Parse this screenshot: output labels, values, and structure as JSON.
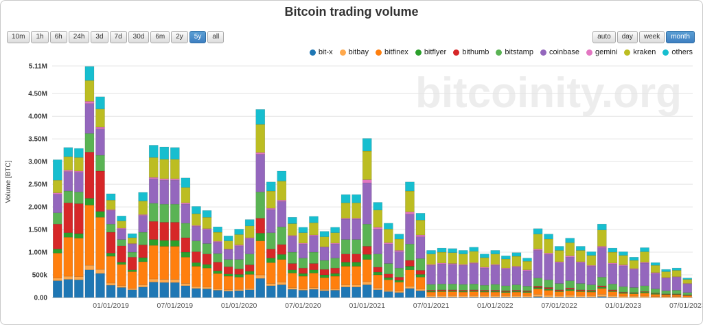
{
  "title": "Bitcoin trading volume",
  "watermark": "bitcoinity.org",
  "colors": {
    "accent": "#3e7fc1"
  },
  "toolbar": {
    "ranges": [
      {
        "label": "10m",
        "selected": false
      },
      {
        "label": "1h",
        "selected": false
      },
      {
        "label": "6h",
        "selected": false
      },
      {
        "label": "24h",
        "selected": false
      },
      {
        "label": "3d",
        "selected": false
      },
      {
        "label": "7d",
        "selected": false
      },
      {
        "label": "30d",
        "selected": false
      },
      {
        "label": "6m",
        "selected": false
      },
      {
        "label": "2y",
        "selected": false
      },
      {
        "label": "5y",
        "selected": true
      },
      {
        "label": "all",
        "selected": false
      }
    ],
    "granularity": [
      {
        "label": "auto",
        "selected": false
      },
      {
        "label": "day",
        "selected": false
      },
      {
        "label": "week",
        "selected": false
      },
      {
        "label": "month",
        "selected": true
      }
    ]
  },
  "chart_data": {
    "type": "bar",
    "stacked": true,
    "title": "Bitcoin trading volume",
    "ylabel": "Volume [BTC]",
    "unit": "million BTC",
    "ylim": [
      0,
      5.11
    ],
    "grid": "horizontal",
    "legend_position": "top-right",
    "y_ticks": [
      {
        "value": 0,
        "label": "0.00"
      },
      {
        "value": 0.5,
        "label": "500k"
      },
      {
        "value": 1.0,
        "label": "1.00M"
      },
      {
        "value": 1.5,
        "label": "1.50M"
      },
      {
        "value": 2.0,
        "label": "2.00M"
      },
      {
        "value": 2.5,
        "label": "2.50M"
      },
      {
        "value": 3.0,
        "label": "3.00M"
      },
      {
        "value": 3.5,
        "label": "3.50M"
      },
      {
        "value": 4.0,
        "label": "4.00M"
      },
      {
        "value": 4.5,
        "label": "4.50M"
      },
      {
        "value": 5.11,
        "label": "5.11M"
      }
    ],
    "x_months": [
      "2018-08",
      "2018-09",
      "2018-10",
      "2018-11",
      "2018-12",
      "2019-01",
      "2019-02",
      "2019-03",
      "2019-04",
      "2019-05",
      "2019-06",
      "2019-07",
      "2019-08",
      "2019-09",
      "2019-10",
      "2019-11",
      "2019-12",
      "2020-01",
      "2020-02",
      "2020-03",
      "2020-04",
      "2020-05",
      "2020-06",
      "2020-07",
      "2020-08",
      "2020-09",
      "2020-10",
      "2020-11",
      "2020-12",
      "2021-01",
      "2021-02",
      "2021-03",
      "2021-04",
      "2021-05",
      "2021-06",
      "2021-07",
      "2021-08",
      "2021-09",
      "2021-10",
      "2021-11",
      "2021-12",
      "2022-01",
      "2022-02",
      "2022-03",
      "2022-04",
      "2022-05",
      "2022-06",
      "2022-07",
      "2022-08",
      "2022-09",
      "2022-10",
      "2022-11",
      "2022-12",
      "2023-01",
      "2023-02",
      "2023-03",
      "2023-04",
      "2023-05",
      "2023-06",
      "2023-07"
    ],
    "x_tick_indices": [
      5,
      11,
      17,
      23,
      29,
      35,
      41,
      47,
      53,
      59
    ],
    "x_tick_labels": [
      "01/01/2019",
      "07/01/2019",
      "01/01/2020",
      "07/01/2020",
      "01/01/2021",
      "07/01/2021",
      "01/01/2022",
      "07/01/2022",
      "01/01/2023",
      "07/01/2023"
    ],
    "series": [
      {
        "name": "bit-x",
        "color": "#1f77b4",
        "values": [
          0.37,
          0.4,
          0.39,
          0.61,
          0.53,
          0.27,
          0.22,
          0.17,
          0.23,
          0.34,
          0.33,
          0.33,
          0.26,
          0.2,
          0.19,
          0.16,
          0.14,
          0.15,
          0.17,
          0.42,
          0.26,
          0.28,
          0.18,
          0.16,
          0.18,
          0.15,
          0.16,
          0.23,
          0.23,
          0.28,
          0.17,
          0.13,
          0.11,
          0.2,
          0.15,
          0.01,
          0.01,
          0.01,
          0.01,
          0.01,
          0.01,
          0.01,
          0.01,
          0.01,
          0.01,
          0.02,
          0.01,
          0.01,
          0.01,
          0.01,
          0.01,
          0.02,
          0.01,
          0,
          0,
          0,
          0,
          0,
          0,
          0
        ]
      },
      {
        "name": "bitbay",
        "color": "#ffa94d",
        "values": [
          0.06,
          0.07,
          0.07,
          0.1,
          0.09,
          0.05,
          0.04,
          0.03,
          0.05,
          0.07,
          0.07,
          0.07,
          0.05,
          0.04,
          0.04,
          0.03,
          0.03,
          0.03,
          0.03,
          0.08,
          0.05,
          0.06,
          0.04,
          0.03,
          0.04,
          0.03,
          0.03,
          0.05,
          0.05,
          0.07,
          0.04,
          0.03,
          0.03,
          0.05,
          0.04,
          0.03,
          0.03,
          0.03,
          0.03,
          0.03,
          0.03,
          0.03,
          0.03,
          0.03,
          0.03,
          0.05,
          0.04,
          0.03,
          0.04,
          0.03,
          0.03,
          0.05,
          0.03,
          0.03,
          0.03,
          0.03,
          0.02,
          0.02,
          0.02,
          0.01
        ]
      },
      {
        "name": "bitfinex",
        "color": "#ff7f0e",
        "values": [
          0.55,
          0.86,
          0.85,
          1.33,
          1.15,
          0.59,
          0.47,
          0.37,
          0.51,
          0.74,
          0.73,
          0.73,
          0.58,
          0.45,
          0.42,
          0.34,
          0.3,
          0.27,
          0.31,
          0.75,
          0.46,
          0.5,
          0.32,
          0.28,
          0.32,
          0.26,
          0.28,
          0.41,
          0.41,
          0.49,
          0.29,
          0.23,
          0.2,
          0.36,
          0.26,
          0.08,
          0.09,
          0.09,
          0.08,
          0.09,
          0.08,
          0.08,
          0.07,
          0.08,
          0.07,
          0.12,
          0.11,
          0.09,
          0.1,
          0.09,
          0.08,
          0.13,
          0.09,
          0.06,
          0.05,
          0.07,
          0.05,
          0.04,
          0.04,
          0.03
        ]
      },
      {
        "name": "bitflyer",
        "color": "#2ca02c",
        "values": [
          0.09,
          0.1,
          0.1,
          0.15,
          0.13,
          0.07,
          0.05,
          0.04,
          0.09,
          0.13,
          0.13,
          0.13,
          0.11,
          0.08,
          0.08,
          0.06,
          0.05,
          0.06,
          0.07,
          0.17,
          0.1,
          0.11,
          0.07,
          0.06,
          0.07,
          0.06,
          0.06,
          0.09,
          0.09,
          0.11,
          0.06,
          0.05,
          0.04,
          0.08,
          0.06,
          0.02,
          0.02,
          0.02,
          0.02,
          0.02,
          0.02,
          0.02,
          0.02,
          0.02,
          0.02,
          0.03,
          0.03,
          0.02,
          0.03,
          0.02,
          0.02,
          0.03,
          0.02,
          0.02,
          0.02,
          0.02,
          0.02,
          0.01,
          0.01,
          0.01
        ]
      },
      {
        "name": "bithumb",
        "color": "#d62728",
        "values": [
          0.55,
          0.66,
          0.66,
          1.02,
          0.89,
          0.46,
          0.36,
          0.28,
          0.28,
          0.4,
          0.4,
          0.4,
          0.32,
          0.24,
          0.23,
          0.19,
          0.16,
          0.12,
          0.14,
          0.33,
          0.2,
          0.22,
          0.14,
          0.12,
          0.14,
          0.12,
          0.12,
          0.18,
          0.18,
          0.18,
          0.11,
          0.08,
          0.07,
          0.13,
          0.09,
          0.02,
          0.02,
          0.02,
          0.02,
          0.02,
          0.02,
          0.02,
          0.02,
          0.02,
          0.02,
          0.03,
          0.03,
          0.02,
          0.03,
          0.02,
          0.02,
          0.03,
          0.02,
          0.01,
          0.01,
          0.01,
          0.01,
          0.01,
          0.01,
          0.01
        ]
      },
      {
        "name": "bitstamp",
        "color": "#5ab354",
        "values": [
          0.25,
          0.26,
          0.26,
          0.41,
          0.35,
          0.18,
          0.14,
          0.11,
          0.28,
          0.4,
          0.4,
          0.4,
          0.32,
          0.24,
          0.23,
          0.19,
          0.16,
          0.21,
          0.24,
          0.58,
          0.36,
          0.39,
          0.25,
          0.22,
          0.25,
          0.2,
          0.22,
          0.32,
          0.32,
          0.49,
          0.29,
          0.23,
          0.2,
          0.36,
          0.26,
          0.13,
          0.13,
          0.13,
          0.13,
          0.13,
          0.11,
          0.13,
          0.11,
          0.12,
          0.1,
          0.18,
          0.17,
          0.14,
          0.16,
          0.14,
          0.12,
          0.19,
          0.13,
          0.12,
          0.11,
          0.13,
          0.09,
          0.07,
          0.08,
          0.05
        ]
      },
      {
        "name": "coinbase",
        "color": "#9467bd",
        "values": [
          0.41,
          0.43,
          0.43,
          0.66,
          0.58,
          0.3,
          0.23,
          0.18,
          0.37,
          0.54,
          0.53,
          0.53,
          0.42,
          0.32,
          0.31,
          0.25,
          0.22,
          0.3,
          0.34,
          0.83,
          0.51,
          0.56,
          0.35,
          0.31,
          0.36,
          0.29,
          0.31,
          0.45,
          0.45,
          0.91,
          0.55,
          0.43,
          0.36,
          0.66,
          0.48,
          0.42,
          0.44,
          0.43,
          0.42,
          0.45,
          0.38,
          0.42,
          0.37,
          0.39,
          0.34,
          0.61,
          0.56,
          0.46,
          0.52,
          0.46,
          0.41,
          0.65,
          0.44,
          0.46,
          0.4,
          0.5,
          0.34,
          0.28,
          0.29,
          0.19
        ]
      },
      {
        "name": "gemini",
        "color": "#e377c2",
        "values": [
          0.03,
          0.03,
          0.03,
          0.05,
          0.04,
          0.02,
          0.02,
          0.01,
          0.02,
          0.03,
          0.03,
          0.03,
          0.03,
          0.02,
          0.02,
          0.02,
          0.01,
          0.02,
          0.02,
          0.04,
          0.03,
          0.03,
          0.02,
          0.02,
          0.02,
          0.01,
          0.02,
          0.02,
          0.02,
          0.07,
          0.04,
          0.03,
          0.03,
          0.05,
          0.04,
          0.02,
          0.02,
          0.02,
          0.02,
          0.02,
          0.02,
          0.02,
          0.02,
          0.02,
          0.02,
          0.03,
          0.03,
          0.02,
          0.03,
          0.02,
          0.02,
          0.03,
          0.02,
          0.02,
          0.02,
          0.02,
          0.02,
          0.01,
          0.01,
          0.01
        ]
      },
      {
        "name": "kraken",
        "color": "#bcbd22",
        "values": [
          0.28,
          0.3,
          0.3,
          0.46,
          0.4,
          0.21,
          0.16,
          0.13,
          0.3,
          0.44,
          0.43,
          0.43,
          0.34,
          0.26,
          0.25,
          0.2,
          0.18,
          0.23,
          0.26,
          0.62,
          0.38,
          0.42,
          0.26,
          0.23,
          0.27,
          0.22,
          0.23,
          0.34,
          0.34,
          0.63,
          0.38,
          0.3,
          0.25,
          0.46,
          0.33,
          0.23,
          0.24,
          0.24,
          0.23,
          0.25,
          0.21,
          0.23,
          0.2,
          0.22,
          0.19,
          0.33,
          0.31,
          0.25,
          0.29,
          0.25,
          0.22,
          0.36,
          0.24,
          0.21,
          0.18,
          0.23,
          0.16,
          0.13,
          0.14,
          0.09
        ]
      },
      {
        "name": "others",
        "color": "#17becf",
        "values": [
          0.45,
          0.2,
          0.2,
          0.31,
          0.27,
          0.14,
          0.11,
          0.09,
          0.19,
          0.27,
          0.27,
          0.26,
          0.21,
          0.16,
          0.15,
          0.12,
          0.11,
          0.12,
          0.14,
          0.33,
          0.2,
          0.22,
          0.14,
          0.12,
          0.14,
          0.12,
          0.12,
          0.18,
          0.18,
          0.28,
          0.17,
          0.13,
          0.11,
          0.2,
          0.15,
          0.08,
          0.09,
          0.09,
          0.08,
          0.09,
          0.08,
          0.08,
          0.07,
          0.08,
          0.07,
          0.12,
          0.11,
          0.09,
          0.1,
          0.09,
          0.08,
          0.13,
          0.09,
          0.08,
          0.07,
          0.09,
          0.06,
          0.05,
          0.05,
          0.03
        ]
      }
    ]
  }
}
